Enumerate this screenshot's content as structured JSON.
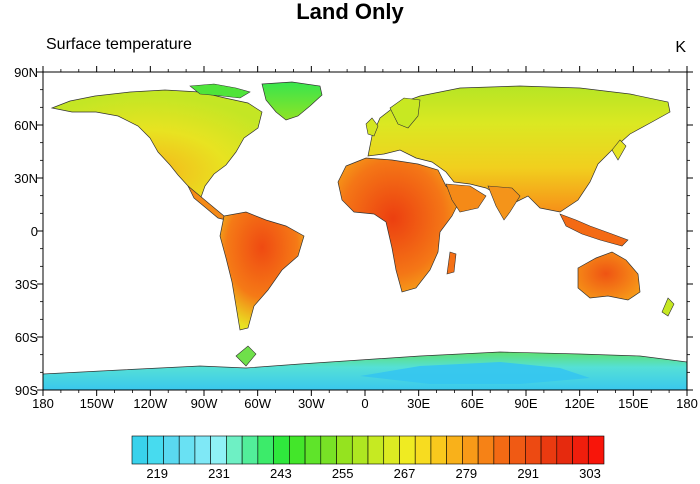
{
  "title": "Land Only",
  "left_string": "Surface temperature",
  "right_string": "K",
  "colors": {
    "ocean": "#ffffff",
    "coastline": "#000000",
    "palette": [
      "#39d2ec",
      "#47dbef",
      "#5ad9f0",
      "#69e1f3",
      "#7fe8f6",
      "#8ff2f6",
      "#6ef0c4",
      "#52ee9a",
      "#3ceb6a",
      "#2fe83d",
      "#43e62a",
      "#5fe42a",
      "#78e226",
      "#95e31f",
      "#aee721",
      "#c6ea22",
      "#dceb22",
      "#efeb22",
      "#f7dc20",
      "#f9c81d",
      "#f9b11a",
      "#f89a18",
      "#f68216",
      "#f36a14",
      "#f05a14",
      "#ed4a12",
      "#ea3a10",
      "#e62a0e",
      "#f01e0c",
      "#f8150a"
    ]
  },
  "chart_data": {
    "type": "map",
    "projection": "cylindrical-equidistant",
    "units": "K",
    "lon_range": [
      -180,
      180
    ],
    "lat_range": [
      -90,
      90
    ],
    "lon_ticks": [
      "180",
      "150W",
      "120W",
      "90W",
      "60W",
      "30W",
      "0",
      "30E",
      "60E",
      "90E",
      "120E",
      "150E",
      "180"
    ],
    "lat_ticks": [
      "90N",
      "60N",
      "30N",
      "0",
      "30S",
      "60S",
      "90S"
    ],
    "colorbar_labels": [
      "219",
      "231",
      "243",
      "255",
      "267",
      "279",
      "291",
      "303"
    ],
    "colorbar_levels": [
      219,
      303
    ],
    "regions": [
      {
        "name": "north-america",
        "value": 270
      },
      {
        "name": "greenland",
        "value": 255
      },
      {
        "name": "south-america",
        "value": 295
      },
      {
        "name": "africa",
        "value": 298
      },
      {
        "name": "eurasia",
        "value": 272
      },
      {
        "name": "australia",
        "value": 296
      },
      {
        "name": "antarctica",
        "value": 228
      }
    ]
  }
}
